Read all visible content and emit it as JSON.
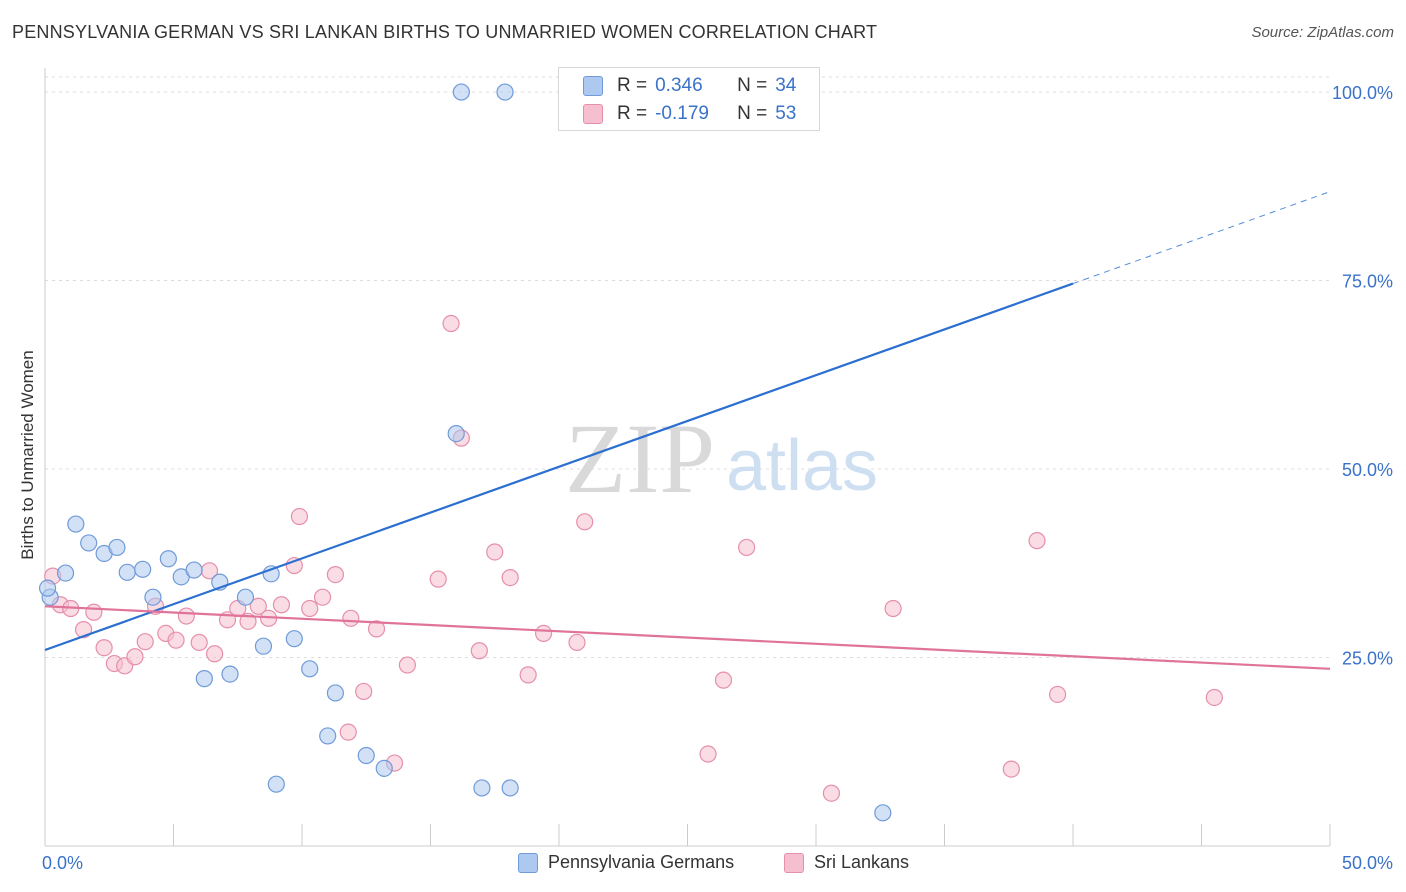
{
  "title": "PENNSYLVANIA GERMAN VS SRI LANKAN BIRTHS TO UNMARRIED WOMEN CORRELATION CHART",
  "source": "Source: ZipAtlas.com",
  "watermark": {
    "zip": "ZIP",
    "atlas": "atlas"
  },
  "colors": {
    "blue_fill": "#aec9ef",
    "blue_stroke": "#6f9bd8",
    "blue_line": "#2b6fd1",
    "pink_fill": "#f5bfd0",
    "pink_stroke": "#e68fab",
    "pink_line": "#e0739a",
    "tick_label": "#3a72c9"
  },
  "legend": {
    "r_label": "R =",
    "n_label": "N =",
    "series1": {
      "r": "0.346",
      "n": "34"
    },
    "series2": {
      "r": "-0.179",
      "n": "53"
    }
  },
  "bottom_legend": {
    "series1": "Pennsylvania Germans",
    "series2": "Sri Lankans"
  },
  "chart_data": {
    "type": "scatter",
    "title": "PENNSYLVANIA GERMAN VS SRI LANKAN BIRTHS TO UNMARRIED WOMEN CORRELATION CHART",
    "xlabel": "",
    "ylabel": "Births to Unmarried Women",
    "xlim": [
      0,
      50
    ],
    "ylim": [
      0,
      102
    ],
    "x_tick_labels": [
      "0.0%",
      "50.0%"
    ],
    "y_ticks": [
      25,
      50,
      75,
      100
    ],
    "y_tick_labels": [
      "25.0%",
      "50.0%",
      "75.0%",
      "100.0%"
    ],
    "grid": "horizontal dashed",
    "legend_position": "top-center",
    "series": [
      {
        "name": "Pennsylvania Germans",
        "r": 0.346,
        "n": 34,
        "points": [
          [
            0.2,
            33.0
          ],
          [
            0.8,
            36.2
          ],
          [
            1.2,
            42.7
          ],
          [
            1.7,
            40.2
          ],
          [
            2.3,
            38.8
          ],
          [
            2.8,
            39.6
          ],
          [
            3.2,
            36.3
          ],
          [
            3.8,
            36.7
          ],
          [
            4.2,
            33.0
          ],
          [
            4.8,
            38.1
          ],
          [
            5.3,
            35.7
          ],
          [
            5.8,
            36.6
          ],
          [
            6.8,
            35.0
          ],
          [
            7.8,
            33.0
          ],
          [
            8.8,
            36.1
          ],
          [
            9.7,
            27.5
          ],
          [
            6.2,
            22.2
          ],
          [
            7.2,
            22.8
          ],
          [
            8.5,
            26.5
          ],
          [
            10.3,
            23.5
          ],
          [
            11.3,
            20.3
          ],
          [
            11.0,
            14.6
          ],
          [
            12.5,
            12.0
          ],
          [
            13.2,
            10.3
          ],
          [
            9.0,
            8.2
          ],
          [
            16.0,
            54.7
          ],
          [
            17.0,
            7.7
          ],
          [
            18.1,
            7.7
          ],
          [
            32.6,
            4.4
          ],
          [
            16.2,
            100.0
          ],
          [
            17.9,
            100.0
          ],
          [
            25.9,
            100.0
          ],
          [
            28.8,
            100.0
          ],
          [
            0.1,
            34.2
          ]
        ],
        "trend": {
          "x": [
            0,
            40
          ],
          "y": [
            26.0,
            74.6
          ]
        },
        "trend_dashed": {
          "x": [
            40,
            50
          ],
          "y": [
            74.6,
            86.8
          ]
        }
      },
      {
        "name": "Sri Lankans",
        "r": -0.179,
        "n": 53,
        "points": [
          [
            0.3,
            35.8
          ],
          [
            0.6,
            32.0
          ],
          [
            1.0,
            31.5
          ],
          [
            1.5,
            28.7
          ],
          [
            1.9,
            31.0
          ],
          [
            2.3,
            26.3
          ],
          [
            2.7,
            24.2
          ],
          [
            3.1,
            23.9
          ],
          [
            3.5,
            25.1
          ],
          [
            3.9,
            27.1
          ],
          [
            4.3,
            31.8
          ],
          [
            4.7,
            28.2
          ],
          [
            5.1,
            27.3
          ],
          [
            5.5,
            30.5
          ],
          [
            6.0,
            27.0
          ],
          [
            6.4,
            36.5
          ],
          [
            6.6,
            25.5
          ],
          [
            7.1,
            30.0
          ],
          [
            7.5,
            31.5
          ],
          [
            7.9,
            29.8
          ],
          [
            8.3,
            31.8
          ],
          [
            8.7,
            30.2
          ],
          [
            9.2,
            32.0
          ],
          [
            9.7,
            37.2
          ],
          [
            9.9,
            43.7
          ],
          [
            10.3,
            31.5
          ],
          [
            10.8,
            33.0
          ],
          [
            11.3,
            36.0
          ],
          [
            11.9,
            30.2
          ],
          [
            12.4,
            20.5
          ],
          [
            11.8,
            15.1
          ],
          [
            12.9,
            28.8
          ],
          [
            13.6,
            11.0
          ],
          [
            14.1,
            24.0
          ],
          [
            15.3,
            35.4
          ],
          [
            15.8,
            69.3
          ],
          [
            16.2,
            54.1
          ],
          [
            16.9,
            25.9
          ],
          [
            17.5,
            39.0
          ],
          [
            18.1,
            35.6
          ],
          [
            18.8,
            22.7
          ],
          [
            19.4,
            28.2
          ],
          [
            20.7,
            27.0
          ],
          [
            21.0,
            43.0
          ],
          [
            25.8,
            12.2
          ],
          [
            26.4,
            22.0
          ],
          [
            27.3,
            39.6
          ],
          [
            30.6,
            7.0
          ],
          [
            33.0,
            31.5
          ],
          [
            37.6,
            10.2
          ],
          [
            38.6,
            40.5
          ],
          [
            39.4,
            20.1
          ],
          [
            45.5,
            19.7
          ]
        ],
        "trend": {
          "x": [
            0,
            50
          ],
          "y": [
            31.8,
            23.5
          ]
        }
      }
    ]
  }
}
